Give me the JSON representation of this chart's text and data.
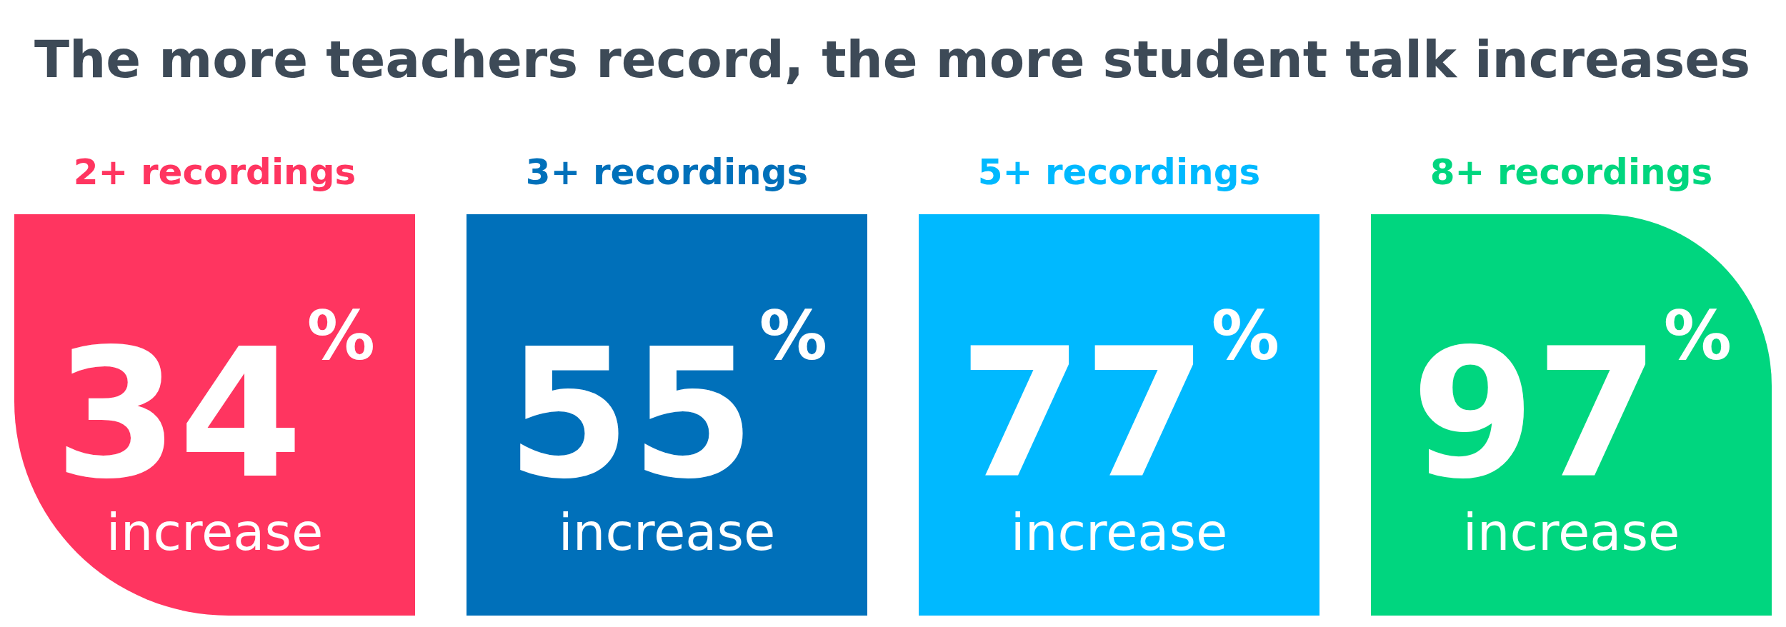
{
  "chart_data": {
    "type": "other",
    "title": "The more teachers record, the more student talk increases",
    "categories": [
      "2+ recordings",
      "3+ recordings",
      "5+ recordings",
      "8+ recordings"
    ],
    "values": [
      34,
      55,
      77,
      97
    ],
    "colors": [
      "#ff3560",
      "#0070ba",
      "#00b9ff",
      "#00d67f"
    ],
    "data_labels": true,
    "annotations": [
      "%",
      "increase",
      "%",
      "increase",
      "%",
      "increase",
      "%",
      "increase"
    ]
  }
}
